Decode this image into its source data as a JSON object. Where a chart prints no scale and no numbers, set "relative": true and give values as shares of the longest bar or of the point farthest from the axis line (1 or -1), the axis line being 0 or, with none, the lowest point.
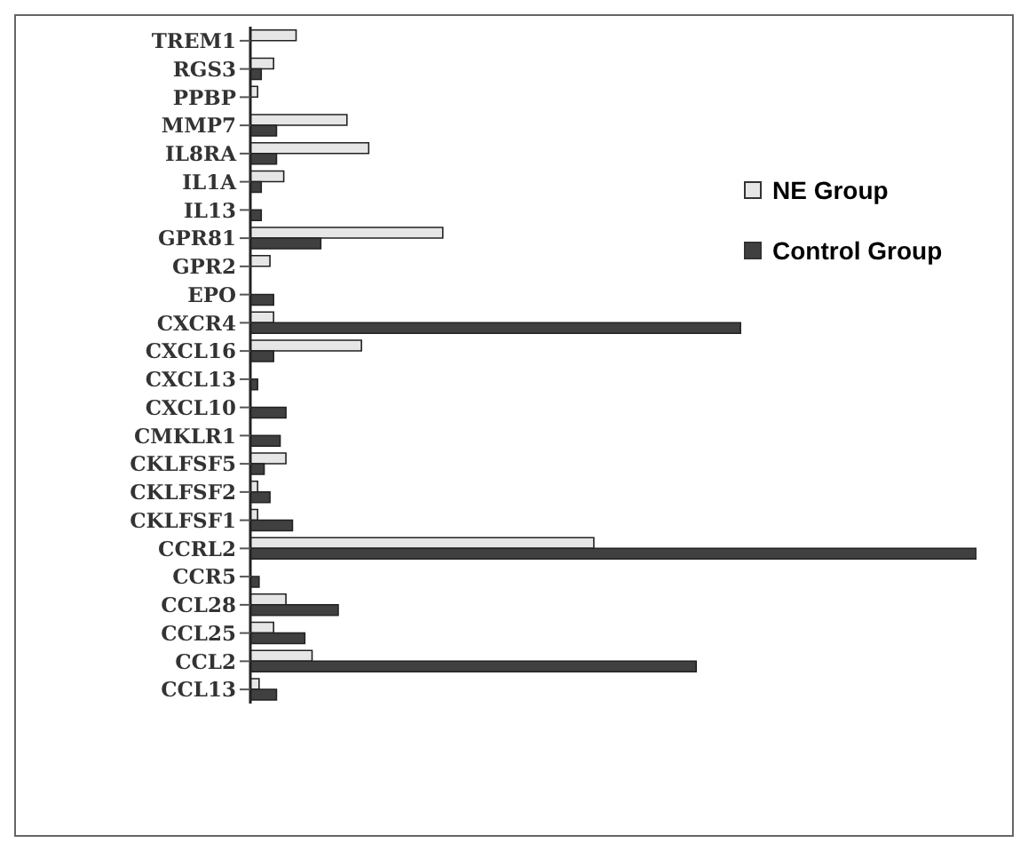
{
  "chart_data": {
    "type": "bar",
    "orientation": "horizontal",
    "relative": true,
    "legend": "right",
    "categories": [
      "TREM1",
      "RGS3",
      "PPBP",
      "MMP7",
      "IL8RA",
      "IL1A",
      "IL13",
      "GPR81",
      "GPR2",
      "EPO",
      "CXCR4",
      "CXCL16",
      "CXCL13",
      "CXCL10",
      "CMKLR1",
      "CKLFSF5",
      "CKLFSF2",
      "CKLFSF1",
      "CCRL2",
      "CCR5",
      "CCL28",
      "CCL25",
      "CCL2",
      "CCL13"
    ],
    "series": [
      {
        "name": "NE Group",
        "color": "#e6e6e6",
        "values": [
          0.063,
          0.032,
          0.01,
          0.133,
          0.163,
          0.046,
          0,
          0.265,
          0.027,
          0,
          0.032,
          0.153,
          0,
          0,
          0,
          0.049,
          0.01,
          0.01,
          0.473,
          0,
          0.049,
          0.032,
          0.085,
          0.012
        ]
      },
      {
        "name": "Control Group",
        "color": "#404040",
        "values": [
          0,
          0.015,
          0,
          0.036,
          0.036,
          0.015,
          0.015,
          0.097,
          0,
          0.032,
          0.675,
          0.032,
          0.01,
          0.049,
          0.041,
          0.019,
          0.027,
          0.058,
          1,
          0.012,
          0.121,
          0.075,
          0.614,
          0.036
        ]
      }
    ]
  }
}
